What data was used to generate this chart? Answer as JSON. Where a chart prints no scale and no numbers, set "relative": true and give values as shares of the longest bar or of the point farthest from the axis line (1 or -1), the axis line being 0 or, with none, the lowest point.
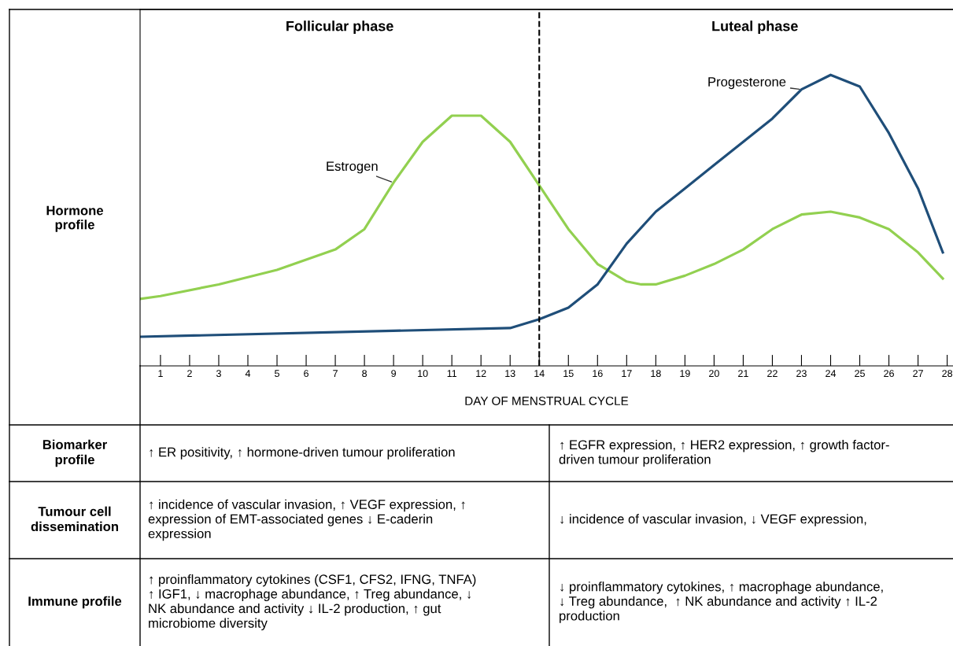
{
  "chart_data": {
    "type": "line",
    "relative": true,
    "xlabel": "DAY OF MENSTRUAL CYCLE",
    "xlim": [
      0.3,
      28.2
    ],
    "xticks": [
      1,
      2,
      3,
      4,
      5,
      6,
      7,
      8,
      9,
      10,
      11,
      12,
      13,
      14,
      15,
      16,
      17,
      18,
      19,
      20,
      21,
      22,
      23,
      24,
      25,
      26,
      27,
      28
    ],
    "legend": false,
    "grid": false,
    "marker": "none",
    "line_style": "solid",
    "series": [
      {
        "name": "Estrogen",
        "color": "#92d050",
        "x": [
          0.3,
          1,
          3,
          5,
          7,
          8,
          9,
          10,
          11,
          12,
          13,
          14,
          15,
          16,
          17,
          17.5,
          18,
          19,
          20,
          21,
          22,
          23,
          24,
          25,
          26,
          27,
          27.85
        ],
        "values": [
          0.23,
          0.24,
          0.28,
          0.33,
          0.4,
          0.47,
          0.63,
          0.77,
          0.86,
          0.86,
          0.77,
          0.62,
          0.47,
          0.35,
          0.29,
          0.28,
          0.28,
          0.31,
          0.35,
          0.4,
          0.47,
          0.52,
          0.53,
          0.51,
          0.47,
          0.39,
          0.3
        ]
      },
      {
        "name": "Progesterone",
        "color": "#1f4e79",
        "x": [
          0.3,
          13,
          14,
          15,
          16,
          17,
          18,
          19,
          20,
          21,
          22,
          23,
          24,
          25,
          26,
          27,
          27.85
        ],
        "values": [
          0.1,
          0.13,
          0.16,
          0.2,
          0.28,
          0.42,
          0.53,
          0.61,
          0.69,
          0.77,
          0.85,
          0.95,
          1.0,
          0.96,
          0.8,
          0.61,
          0.39
        ]
      }
    ],
    "ref_lines": [
      {
        "axis": "x",
        "value": 14,
        "color": "#000000",
        "line_style": "dashed"
      }
    ],
    "annotations": [
      "Follicular phase",
      "Luteal phase",
      "Hormone\nprofile",
      "Biomarker\nprofile",
      "↑ ER positivity, ↑ hormone-driven tumour proliferation",
      "↑ EGFR expression, ↑ HER2 expression, ↑ growth factor-\ndriven tumour proliferation",
      "Tumour cell\ndissemination",
      "↑ incidence of vascular invasion, ↑ VEGF expression, ↑\nexpression of EMT-associated genes ↓ E-caderin\nexpression",
      "↓ incidence of vascular invasion, ↓ VEGF expression,",
      "Immune profile",
      "↑ proinflammatory cytokines (CSF1, CFS2, IFNG, TNFA)\n↑ IGF1, ↓ macrophage abundance, ↑ Treg abundance, ↓\nNK abundance and activity ↓ IL-2 production, ↑ gut\nmicrobiome diversity",
      "↓ proinflammatory cytokines, ↑ macrophage abundance,\n↓ Treg abundance,  ↑ NK abundance and activity ↑ IL-2\nproduction"
    ]
  }
}
